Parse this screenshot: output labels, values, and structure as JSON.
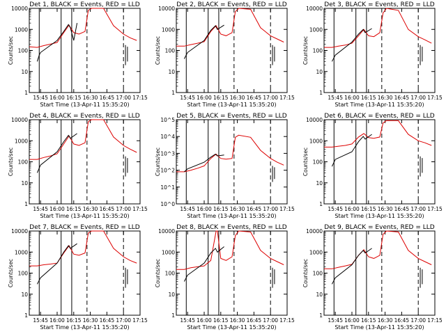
{
  "chart_data": {
    "type": "line",
    "x_ticks": [
      "15:45",
      "16:00",
      "16:15",
      "16:30",
      "16:45",
      "17:00",
      "17:15"
    ],
    "xlabel": "Start Time (13-Apr-11 15:35:20)",
    "ylabel": "Counts/sec",
    "y_scale": "log",
    "ylim": [
      1,
      10000
    ],
    "legend": "BLACK = Events, RED = LLD",
    "panels": [
      {
        "title": "Det 1, BLACK = Events, RED = LLD",
        "y_ticks": [
          "1",
          "10",
          "100",
          "1000",
          "10000"
        ],
        "events": [
          [
            15.7,
            30
          ],
          [
            15.73,
            60
          ],
          [
            15.75,
            80
          ],
          [
            16.0,
            300
          ],
          [
            16.1,
            800
          ],
          [
            16.17,
            1700
          ],
          [
            16.2,
            1200
          ],
          [
            16.25,
            300
          ],
          [
            16.3,
            2000
          ]
        ],
        "lld": [
          [
            15.58,
            150
          ],
          [
            15.7,
            140
          ],
          [
            15.8,
            170
          ],
          [
            15.9,
            200
          ],
          [
            16.0,
            240
          ],
          [
            16.1,
            700
          ],
          [
            16.18,
            1600
          ],
          [
            16.25,
            700
          ],
          [
            16.33,
            600
          ],
          [
            16.42,
            800
          ],
          [
            16.47,
            8000
          ],
          [
            16.52,
            10000
          ],
          [
            16.7,
            10000
          ],
          [
            16.85,
            1500
          ],
          [
            17.0,
            600
          ],
          [
            17.1,
            400
          ],
          [
            17.2,
            300
          ]
        ]
      },
      {
        "title": "Det 2, BLACK = Events, RED = LLD",
        "y_ticks": [
          "1",
          "10",
          "100",
          "1000",
          "10000"
        ],
        "events": [
          [
            15.7,
            40
          ],
          [
            15.75,
            80
          ],
          [
            16.0,
            300
          ],
          [
            16.1,
            900
          ],
          [
            16.17,
            1500
          ],
          [
            16.2,
            1000
          ],
          [
            16.3,
            1600
          ]
        ],
        "lld": [
          [
            15.58,
            160
          ],
          [
            15.7,
            160
          ],
          [
            15.8,
            190
          ],
          [
            15.9,
            220
          ],
          [
            16.0,
            260
          ],
          [
            16.1,
            800
          ],
          [
            16.18,
            1500
          ],
          [
            16.25,
            600
          ],
          [
            16.33,
            500
          ],
          [
            16.42,
            700
          ],
          [
            16.47,
            7000
          ],
          [
            16.52,
            10000
          ],
          [
            16.7,
            9000
          ],
          [
            16.85,
            1200
          ],
          [
            17.0,
            500
          ],
          [
            17.1,
            350
          ],
          [
            17.2,
            250
          ]
        ]
      },
      {
        "title": "Det 3, BLACK = Events, RED = LLD",
        "y_ticks": [
          "1",
          "10",
          "100",
          "1000",
          "10000"
        ],
        "events": [
          [
            15.7,
            30
          ],
          [
            15.75,
            60
          ],
          [
            16.0,
            250
          ],
          [
            16.1,
            600
          ],
          [
            16.17,
            1000
          ],
          [
            16.2,
            700
          ],
          [
            16.3,
            1100
          ]
        ],
        "lld": [
          [
            15.58,
            140
          ],
          [
            15.7,
            140
          ],
          [
            15.8,
            160
          ],
          [
            15.9,
            180
          ],
          [
            16.0,
            220
          ],
          [
            16.1,
            500
          ],
          [
            16.18,
            1000
          ],
          [
            16.25,
            500
          ],
          [
            16.33,
            450
          ],
          [
            16.42,
            700
          ],
          [
            16.47,
            6000
          ],
          [
            16.52,
            10000
          ],
          [
            16.7,
            8000
          ],
          [
            16.85,
            1000
          ],
          [
            17.0,
            450
          ],
          [
            17.1,
            320
          ],
          [
            17.2,
            220
          ]
        ]
      },
      {
        "title": "Det 4, BLACK = Events, RED = LLD",
        "y_ticks": [
          "1",
          "10",
          "100",
          "1000",
          "10000"
        ],
        "events": [
          [
            15.7,
            30
          ],
          [
            15.75,
            70
          ],
          [
            16.0,
            300
          ],
          [
            16.1,
            900
          ],
          [
            16.17,
            1800
          ],
          [
            16.2,
            1300
          ],
          [
            16.3,
            2200
          ]
        ],
        "lld": [
          [
            15.58,
            130
          ],
          [
            15.7,
            130
          ],
          [
            15.8,
            160
          ],
          [
            15.9,
            190
          ],
          [
            16.0,
            240
          ],
          [
            16.1,
            700
          ],
          [
            16.18,
            1700
          ],
          [
            16.25,
            700
          ],
          [
            16.33,
            600
          ],
          [
            16.42,
            800
          ],
          [
            16.47,
            8000
          ],
          [
            16.52,
            10000
          ],
          [
            16.7,
            10000
          ],
          [
            16.85,
            1500
          ],
          [
            17.0,
            600
          ],
          [
            17.1,
            400
          ],
          [
            17.2,
            280
          ]
        ]
      },
      {
        "title": "Det 5, BLACK = Events, RED = LLD",
        "y_ticks": [
          "10^0",
          "10^1",
          "10^2",
          "10^3",
          "10^4",
          "10^5"
        ],
        "events": [
          [
            15.7,
            80
          ],
          [
            15.75,
            120
          ],
          [
            16.0,
            300
          ],
          [
            16.1,
            600
          ],
          [
            16.17,
            900
          ],
          [
            16.2,
            700
          ],
          [
            16.3,
            800
          ]
        ],
        "lld": [
          [
            15.58,
            80
          ],
          [
            15.7,
            80
          ],
          [
            15.8,
            100
          ],
          [
            15.9,
            130
          ],
          [
            16.0,
            180
          ],
          [
            16.1,
            500
          ],
          [
            16.18,
            900
          ],
          [
            16.25,
            500
          ],
          [
            16.33,
            450
          ],
          [
            16.42,
            500
          ],
          [
            16.47,
            9000
          ],
          [
            16.52,
            12000
          ],
          [
            16.7,
            9000
          ],
          [
            16.85,
            1500
          ],
          [
            17.0,
            500
          ],
          [
            17.1,
            300
          ],
          [
            17.2,
            200
          ]
        ]
      },
      {
        "title": "Det 6, BLACK = Events, RED = LLD",
        "y_ticks": [
          "1",
          "10",
          "100",
          "1000",
          "10000"
        ],
        "events": [
          [
            15.7,
            60
          ],
          [
            15.75,
            130
          ],
          [
            16.0,
            300
          ],
          [
            16.1,
            900
          ],
          [
            16.17,
            1600
          ],
          [
            16.2,
            1200
          ],
          [
            16.3,
            2000
          ]
        ],
        "lld": [
          [
            15.58,
            500
          ],
          [
            15.7,
            500
          ],
          [
            15.8,
            550
          ],
          [
            15.9,
            600
          ],
          [
            16.0,
            700
          ],
          [
            16.1,
            1500
          ],
          [
            16.18,
            2200
          ],
          [
            16.25,
            1400
          ],
          [
            16.33,
            1300
          ],
          [
            16.42,
            1500
          ],
          [
            16.47,
            7000
          ],
          [
            16.52,
            9000
          ],
          [
            16.7,
            9000
          ],
          [
            16.85,
            2000
          ],
          [
            17.0,
            1000
          ],
          [
            17.1,
            800
          ],
          [
            17.2,
            600
          ]
        ]
      },
      {
        "title": "Det 7, BLACK = Events, RED = LLD",
        "y_ticks": [
          "1",
          "10",
          "100",
          "1000",
          "10000"
        ],
        "events": [
          [
            15.7,
            30
          ],
          [
            15.75,
            60
          ],
          [
            16.0,
            300
          ],
          [
            16.1,
            1000
          ],
          [
            16.17,
            2000
          ],
          [
            16.2,
            1500
          ],
          [
            16.3,
            2500
          ]
        ],
        "lld": [
          [
            15.58,
            220
          ],
          [
            15.7,
            220
          ],
          [
            15.8,
            250
          ],
          [
            15.9,
            270
          ],
          [
            16.0,
            300
          ],
          [
            16.1,
            900
          ],
          [
            16.18,
            2000
          ],
          [
            16.25,
            800
          ],
          [
            16.33,
            700
          ],
          [
            16.42,
            900
          ],
          [
            16.47,
            8000
          ],
          [
            16.52,
            10000
          ],
          [
            16.7,
            10000
          ],
          [
            16.85,
            1500
          ],
          [
            17.0,
            600
          ],
          [
            17.1,
            400
          ],
          [
            17.2,
            300
          ]
        ]
      },
      {
        "title": "Det 8, BLACK = Events, RED = LLD",
        "y_ticks": [
          "1",
          "10",
          "100",
          "1000",
          "10000"
        ],
        "events": [
          [
            15.7,
            40
          ],
          [
            15.75,
            80
          ],
          [
            16.0,
            300
          ],
          [
            16.1,
            900
          ],
          [
            16.17,
            1500
          ],
          [
            16.2,
            1000
          ],
          [
            16.3,
            1800
          ]
        ],
        "lld": [
          [
            15.58,
            150
          ],
          [
            15.7,
            150
          ],
          [
            15.8,
            180
          ],
          [
            15.9,
            200
          ],
          [
            16.0,
            220
          ],
          [
            16.1,
            400
          ],
          [
            16.18,
            10000
          ],
          [
            16.2,
            10000
          ],
          [
            16.25,
            500
          ],
          [
            16.33,
            400
          ],
          [
            16.42,
            600
          ],
          [
            16.47,
            6000
          ],
          [
            16.52,
            10000
          ],
          [
            16.7,
            9000
          ],
          [
            16.85,
            1200
          ],
          [
            17.0,
            500
          ],
          [
            17.1,
            350
          ],
          [
            17.2,
            250
          ]
        ]
      },
      {
        "title": "Det 9, BLACK = Events, RED = LLD",
        "y_ticks": [
          "1",
          "10",
          "100",
          "1000",
          "10000"
        ],
        "events": [
          [
            15.7,
            30
          ],
          [
            15.75,
            60
          ],
          [
            16.0,
            250
          ],
          [
            16.1,
            700
          ],
          [
            16.17,
            1200
          ],
          [
            16.2,
            900
          ],
          [
            16.3,
            1500
          ]
        ],
        "lld": [
          [
            15.58,
            160
          ],
          [
            15.7,
            160
          ],
          [
            15.8,
            190
          ],
          [
            15.9,
            220
          ],
          [
            16.0,
            260
          ],
          [
            16.1,
            700
          ],
          [
            16.18,
            1300
          ],
          [
            16.25,
            600
          ],
          [
            16.33,
            500
          ],
          [
            16.42,
            700
          ],
          [
            16.47,
            7000
          ],
          [
            16.52,
            10000
          ],
          [
            16.7,
            9000
          ],
          [
            16.85,
            1200
          ],
          [
            17.0,
            500
          ],
          [
            17.1,
            350
          ],
          [
            17.2,
            250
          ]
        ]
      }
    ]
  },
  "colors": {
    "events": "#000000",
    "lld": "#dd0000",
    "axis": "#000000",
    "background": "#ffffff"
  }
}
